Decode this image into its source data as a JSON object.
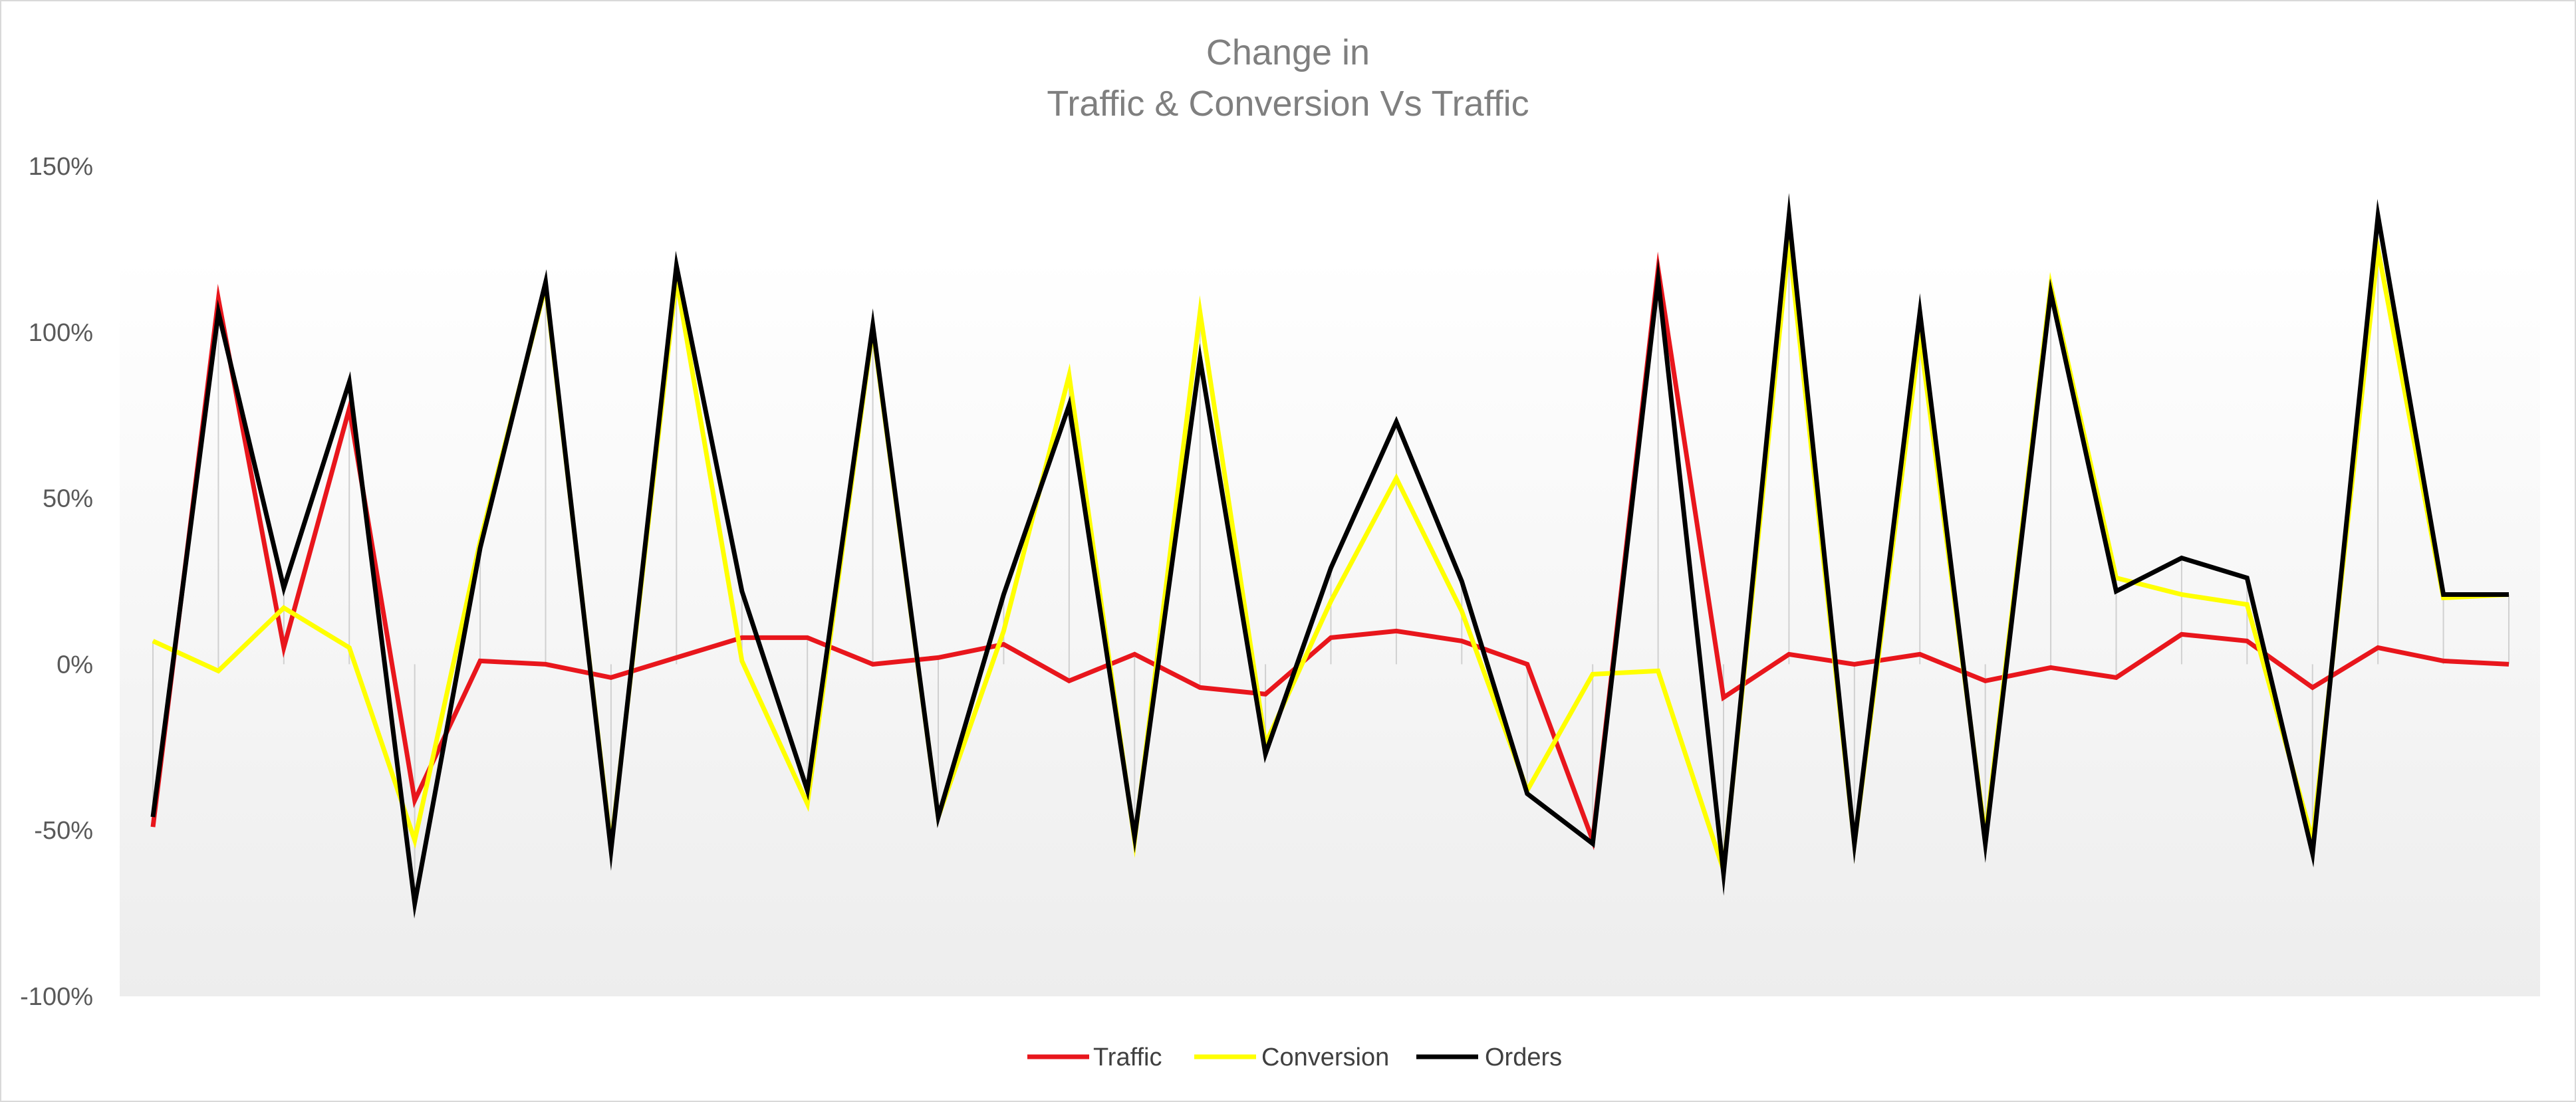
{
  "chart_data": {
    "type": "line",
    "title_lines": [
      "Change in",
      "Traffic & Conversion Vs Traffic"
    ],
    "xlabel": "",
    "ylabel": "",
    "ylim": [
      -1,
      1.5
    ],
    "yticks": [
      -1,
      -0.5,
      0,
      0.5,
      1,
      1.5
    ],
    "ytick_labels": [
      "-100%",
      "-50%",
      "0%",
      "50%",
      "100%",
      "150%"
    ],
    "grid": false,
    "legend_position": "bottom",
    "point_count": 37,
    "series": [
      {
        "name": "Traffic",
        "color": "#e8161c",
        "values": [
          -0.49,
          1.1,
          0.05,
          0.77,
          -0.41,
          0.01,
          0.0,
          -0.04,
          0.02,
          0.08,
          0.08,
          0.0,
          0.02,
          0.06,
          -0.05,
          0.03,
          -0.07,
          -0.09,
          0.08,
          0.1,
          0.07,
          0.0,
          -0.53,
          1.19,
          -0.1,
          0.03,
          0.0,
          0.03,
          -0.05,
          -0.01,
          -0.04,
          0.09,
          0.07,
          -0.07,
          0.05,
          0.01,
          0.0
        ]
      },
      {
        "name": "Conversion",
        "color": "#ffff00",
        "values": [
          0.07,
          -0.02,
          0.17,
          0.05,
          -0.53,
          0.37,
          1.14,
          -0.55,
          1.16,
          0.01,
          -0.42,
          1.01,
          -0.46,
          0.1,
          0.87,
          -0.53,
          1.06,
          -0.24,
          0.19,
          0.56,
          0.16,
          -0.38,
          -0.03,
          -0.02,
          -0.62,
          1.27,
          -0.54,
          0.99,
          -0.52,
          1.14,
          0.26,
          0.21,
          0.18,
          -0.53,
          1.25,
          0.2,
          0.21
        ]
      },
      {
        "name": "Orders",
        "color": "#000000",
        "values": [
          -0.46,
          1.06,
          0.23,
          0.85,
          -0.72,
          0.35,
          1.15,
          -0.56,
          1.2,
          0.22,
          -0.38,
          1.02,
          -0.46,
          0.21,
          0.78,
          -0.52,
          0.92,
          -0.27,
          0.29,
          0.73,
          0.25,
          -0.39,
          -0.54,
          1.16,
          -0.63,
          1.35,
          -0.54,
          1.06,
          -0.54,
          1.12,
          0.22,
          0.32,
          0.26,
          -0.57,
          1.35,
          0.21,
          0.21
        ]
      }
    ]
  }
}
